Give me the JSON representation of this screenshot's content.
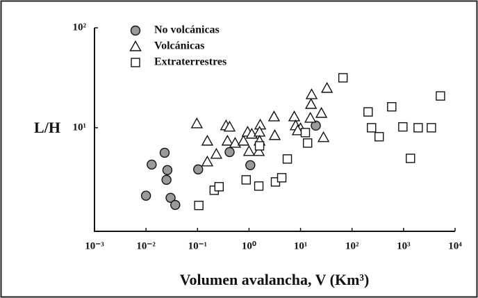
{
  "chart_data": {
    "type": "scatter",
    "xlabel": "Volumen avalancha, V (Km³)",
    "ylabel": "L/H",
    "xscale": "log",
    "yscale": "log",
    "xlim": [
      0.001,
      10000
    ],
    "ylim": [
      0.92,
      100
    ],
    "xticks": [
      {
        "value": 0.001,
        "label": "10⁻³"
      },
      {
        "value": 0.01,
        "label": "10⁻²"
      },
      {
        "value": 0.1,
        "label": "10⁻¹"
      },
      {
        "value": 1,
        "label": "10⁰"
      },
      {
        "value": 10,
        "label": "10¹"
      },
      {
        "value": 100,
        "label": "10²"
      },
      {
        "value": 1000,
        "label": "10³"
      },
      {
        "value": 10000,
        "label": "10⁴"
      }
    ],
    "yticks": [
      {
        "value": 10,
        "label": "10¹"
      },
      {
        "value": 100,
        "label": "10²"
      }
    ],
    "legend": "upper left",
    "series": [
      {
        "name": "No volcánicas",
        "marker": "circle",
        "color": "#9a9a9a",
        "x": [
          0.01,
          0.0129,
          0.023,
          0.026,
          0.025,
          0.03,
          0.037,
          0.103,
          0.42,
          1.06,
          19.8
        ],
        "values": [
          2.09,
          4.28,
          5.62,
          3.77,
          3.01,
          1.99,
          1.69,
          3.83,
          5.71,
          4.22,
          10.5
        ]
      },
      {
        "name": "Volcánicas",
        "marker": "triangle",
        "color": "#ffffff",
        "x": [
          0.097,
          0.155,
          0.155,
          0.232,
          0.358,
          0.42,
          0.381,
          0.537,
          0.78,
          0.94,
          1.0,
          1.13,
          1.65,
          1.55,
          1.6,
          1.6,
          3.06,
          3.16,
          7.55,
          8.04,
          10,
          8.83,
          16,
          16.4,
          15.5,
          25.4,
          27.9,
          32.6
        ],
        "values": [
          11.0,
          7.38,
          4.57,
          5.45,
          10.5,
          10.2,
          7.38,
          7.03,
          7.38,
          9.08,
          5.81,
          8.66,
          10.7,
          5.81,
          9.08,
          7.38,
          12.9,
          8.39,
          12.9,
          10.5,
          9.84,
          9.38,
          17.2,
          21.5,
          12.5,
          14.0,
          8.0,
          24.9
        ]
      },
      {
        "name": "Extraterrestres",
        "marker": "square",
        "color": "#ffffff",
        "x": [
          0.106,
          0.211,
          0.262,
          0.88,
          1.55,
          1.6,
          3.26,
          4.32,
          5.54,
          12.4,
          13.7,
          66.7,
          205,
          239,
          336,
          589,
          969,
          1920,
          1360,
          3470,
          5200
        ],
        "values": [
          1.67,
          2.37,
          2.57,
          3.01,
          2.61,
          6.59,
          2.87,
          3.16,
          4.87,
          8.94,
          7.03,
          31.6,
          14.4,
          10,
          8.13,
          16.2,
          10.2,
          10,
          4.94,
          10,
          20.8
        ]
      }
    ]
  }
}
